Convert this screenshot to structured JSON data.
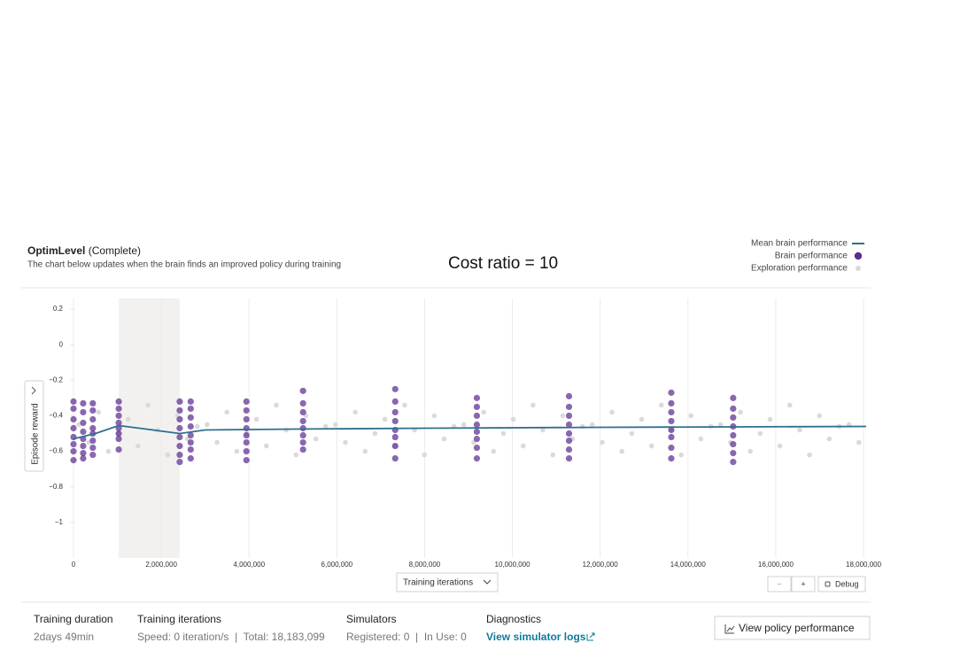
{
  "header": {
    "title": "OptimLevel",
    "status": "(Complete)",
    "subtitle": "The chart below updates when the brain finds an improved policy during training",
    "annotation": "Cost ratio = 10"
  },
  "chart_data": {
    "type": "scatter",
    "x_label": "Training iterations",
    "y_label": "Episode reward",
    "xlim": [
      0,
      18060000
    ],
    "ylim": [
      -1.2,
      0.26
    ],
    "xticks": [
      {
        "value": 0,
        "label": "0"
      },
      {
        "value": 2000000,
        "label": "2,000,000"
      },
      {
        "value": 4000000,
        "label": "4,000,000"
      },
      {
        "value": 6000000,
        "label": "6,000,000"
      },
      {
        "value": 8000000,
        "label": "8,000,000"
      },
      {
        "value": 10000000,
        "label": "10,000,000"
      },
      {
        "value": 12000000,
        "label": "12,000,000"
      },
      {
        "value": 14000000,
        "label": "14,000,000"
      },
      {
        "value": 16000000,
        "label": "16,000,000"
      },
      {
        "value": 18000000,
        "label": "18,000,000"
      }
    ],
    "yticks": [
      0.2,
      0,
      {
        "value": -0.2,
        "label": "−0.2"
      },
      {
        "value": -0.4,
        "label": "−0.4"
      },
      {
        "value": -0.6,
        "label": "−0.6"
      },
      {
        "value": -0.8,
        "label": "−0.8"
      },
      {
        "value": -1,
        "label": "−1"
      }
    ],
    "grid": true,
    "highlight": [
      1030000,
      2420000
    ],
    "series": [
      {
        "name": "Mean brain performance",
        "color": "#2e6f8e",
        "kind": "line",
        "x": [
          0,
          500000,
          1030000,
          1500000,
          2420000,
          3000000,
          5000000,
          8000000,
          12000000,
          18060000
        ],
        "values": [
          -0.53,
          -0.5,
          -0.455,
          -0.47,
          -0.5,
          -0.48,
          -0.475,
          -0.47,
          -0.465,
          -0.46
        ]
      },
      {
        "name": "Brain performance",
        "color": "#5c2d91",
        "kind": "points",
        "x": [
          0,
          0,
          0,
          0,
          0,
          0,
          0,
          0,
          220000,
          220000,
          220000,
          220000,
          220000,
          220000,
          220000,
          220000,
          440000,
          440000,
          440000,
          440000,
          440000,
          440000,
          440000,
          440000,
          1030000,
          1030000,
          1030000,
          1030000,
          1030000,
          1030000,
          1030000,
          1030000,
          2420000,
          2420000,
          2420000,
          2420000,
          2420000,
          2420000,
          2420000,
          2420000,
          2670000,
          2670000,
          2670000,
          2670000,
          2670000,
          2670000,
          2670000,
          2670000,
          3940000,
          3940000,
          3940000,
          3940000,
          3940000,
          3940000,
          3940000,
          3940000,
          5230000,
          5230000,
          5230000,
          5230000,
          5230000,
          5230000,
          5230000,
          5230000,
          7330000,
          7330000,
          7330000,
          7330000,
          7330000,
          7330000,
          7330000,
          7330000,
          9190000,
          9190000,
          9190000,
          9190000,
          9190000,
          9190000,
          9190000,
          9190000,
          11290000,
          11290000,
          11290000,
          11290000,
          11290000,
          11290000,
          11290000,
          11290000,
          13620000,
          13620000,
          13620000,
          13620000,
          13620000,
          13620000,
          13620000,
          13620000,
          15030000,
          15030000,
          15030000,
          15030000,
          15030000,
          15030000,
          15030000,
          15030000
        ],
        "values": [
          -0.32,
          -0.36,
          -0.42,
          -0.47,
          -0.52,
          -0.56,
          -0.6,
          -0.65,
          -0.33,
          -0.38,
          -0.44,
          -0.49,
          -0.53,
          -0.57,
          -0.61,
          -0.64,
          -0.33,
          -0.37,
          -0.42,
          -0.47,
          -0.5,
          -0.54,
          -0.58,
          -0.62,
          -0.32,
          -0.36,
          -0.4,
          -0.44,
          -0.47,
          -0.5,
          -0.53,
          -0.59,
          -0.32,
          -0.37,
          -0.42,
          -0.47,
          -0.52,
          -0.57,
          -0.62,
          -0.66,
          -0.32,
          -0.36,
          -0.41,
          -0.46,
          -0.51,
          -0.55,
          -0.59,
          -0.64,
          -0.32,
          -0.37,
          -0.42,
          -0.47,
          -0.51,
          -0.55,
          -0.6,
          -0.65,
          -0.26,
          -0.33,
          -0.38,
          -0.43,
          -0.47,
          -0.51,
          -0.55,
          -0.59,
          -0.25,
          -0.32,
          -0.38,
          -0.43,
          -0.48,
          -0.52,
          -0.57,
          -0.64,
          -0.3,
          -0.35,
          -0.4,
          -0.45,
          -0.49,
          -0.53,
          -0.58,
          -0.64,
          -0.29,
          -0.35,
          -0.4,
          -0.45,
          -0.5,
          -0.54,
          -0.59,
          -0.64,
          -0.27,
          -0.33,
          -0.38,
          -0.43,
          -0.48,
          -0.52,
          -0.58,
          -0.64,
          -0.3,
          -0.36,
          -0.41,
          -0.46,
          -0.51,
          -0.56,
          -0.61,
          -0.66
        ]
      },
      {
        "name": "Exploration performance",
        "color": "#dadada",
        "kind": "points",
        "x": [
          120000,
          345000,
          570000,
          795000,
          1020000,
          1245000,
          1470000,
          1695000,
          1920000,
          2145000,
          2370000,
          2595000,
          2820000,
          3045000,
          3270000,
          3495000,
          3720000,
          3945000,
          4170000,
          4395000,
          4620000,
          4845000,
          5070000,
          5295000,
          5520000,
          5745000,
          5970000,
          6195000,
          6420000,
          6645000,
          6870000,
          7095000,
          7320000,
          7545000,
          7770000,
          7995000,
          8220000,
          8445000,
          8670000,
          8895000,
          9120000,
          9345000,
          9570000,
          9795000,
          10020000,
          10245000,
          10470000,
          10695000,
          10920000,
          11145000,
          11370000,
          11595000,
          11820000,
          12045000,
          12270000,
          12495000,
          12720000,
          12945000,
          13170000,
          13395000,
          13620000,
          13845000,
          14070000,
          14295000,
          14520000,
          14745000,
          14970000,
          15195000,
          15420000,
          15645000,
          15870000,
          16095000,
          16320000,
          16545000,
          16770000,
          16995000,
          17220000,
          17445000,
          17670000,
          17895000
        ],
        "values": [
          -0.45,
          -0.55,
          -0.38,
          -0.6,
          -0.5,
          -0.42,
          -0.57,
          -0.34,
          -0.48,
          -0.62,
          -0.4,
          -0.53,
          -0.46,
          -0.45,
          -0.55,
          -0.38,
          -0.6,
          -0.5,
          -0.42,
          -0.57,
          -0.34,
          -0.48,
          -0.62,
          -0.4,
          -0.53,
          -0.46,
          -0.45,
          -0.55,
          -0.38,
          -0.6,
          -0.5,
          -0.42,
          -0.57,
          -0.34,
          -0.48,
          -0.62,
          -0.4,
          -0.53,
          -0.46,
          -0.45,
          -0.55,
          -0.38,
          -0.6,
          -0.5,
          -0.42,
          -0.57,
          -0.34,
          -0.48,
          -0.62,
          -0.4,
          -0.53,
          -0.46,
          -0.45,
          -0.55,
          -0.38,
          -0.6,
          -0.5,
          -0.42,
          -0.57,
          -0.34,
          -0.48,
          -0.62,
          -0.4,
          -0.53,
          -0.46,
          -0.45,
          -0.55,
          -0.38,
          -0.6,
          -0.5,
          -0.42,
          -0.57,
          -0.34,
          -0.48,
          -0.62,
          -0.4,
          -0.53,
          -0.46,
          -0.45,
          -0.55
        ]
      }
    ]
  },
  "controls": {
    "zoom_out": "−",
    "zoom_in": "+",
    "debug": "Debug"
  },
  "stats": [
    {
      "label": "Training duration",
      "value": "2days 49min"
    },
    {
      "label": "Training iterations",
      "value": "Speed: 0 iteration/s  |  Total: 18,183,099"
    },
    {
      "label": "Simulators",
      "value": "Registered: 0  |  In Use: 0"
    },
    {
      "label": "Diagnostics",
      "value": "View simulator logs"
    }
  ],
  "action": "View policy performance"
}
